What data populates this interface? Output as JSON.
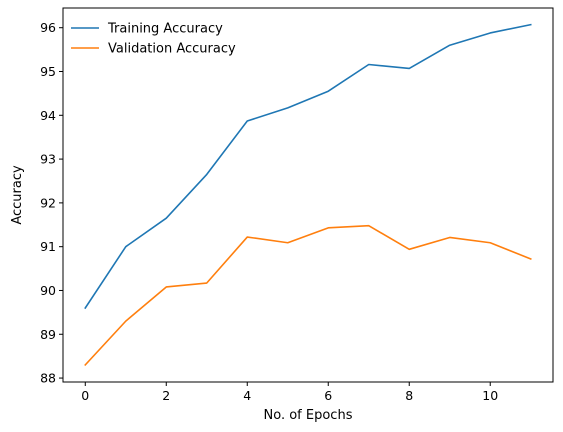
{
  "chart_data": {
    "type": "line",
    "title": "",
    "xlabel": "No. of Epochs",
    "ylabel": "Accuracy",
    "x": [
      0,
      1,
      2,
      3,
      4,
      5,
      6,
      7,
      8,
      9,
      10,
      11
    ],
    "xlim": [
      -0.55,
      11.55
    ],
    "ylim": [
      87.91,
      96.45
    ],
    "xticks": [
      0,
      2,
      4,
      6,
      8,
      10
    ],
    "yticks": [
      88,
      89,
      90,
      91,
      92,
      93,
      94,
      95,
      96
    ],
    "grid": false,
    "legend_position": "top-left",
    "series": [
      {
        "name": "Training Accuracy",
        "color": "#1f77b4",
        "values": [
          89.6,
          91.0,
          91.65,
          92.65,
          93.87,
          94.17,
          94.55,
          95.16,
          95.07,
          95.6,
          95.88,
          96.07
        ]
      },
      {
        "name": "Validation Accuracy",
        "color": "#ff7f0e",
        "values": [
          88.3,
          89.3,
          90.08,
          90.17,
          91.22,
          91.09,
          91.43,
          91.48,
          90.94,
          91.21,
          91.09,
          90.72
        ]
      }
    ]
  }
}
